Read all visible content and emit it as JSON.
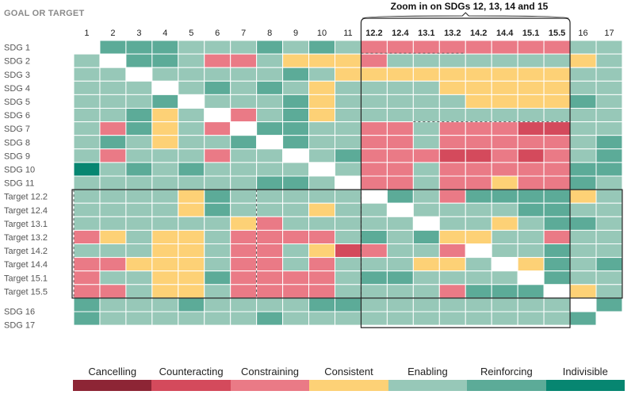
{
  "chart_data": {
    "type": "heatmap",
    "header_label": "GOAL OR TARGET",
    "zoom_title": "Zoom in on SDGs 12, 13, 14 and 15",
    "columns": [
      "1",
      "2",
      "3",
      "4",
      "5",
      "6",
      "7",
      "8",
      "9",
      "10",
      "11",
      "12.2",
      "12.4",
      "13.1",
      "13.2",
      "14.2",
      "14.4",
      "15.1",
      "15.5",
      "16",
      "17"
    ],
    "rows": [
      "SDG 1",
      "SDG 2",
      "SDG 3",
      "SDG 4",
      "SDG 5",
      "SDG 6",
      "SDG 7",
      "SDG 8",
      "SDG 9",
      "SDG 10",
      "SDG 11",
      "Target 12.2",
      "Target 12.4",
      "Target 13.1",
      "Target 13.2",
      "Target 14.2",
      "Target 14.4",
      "Target 15.1",
      "Target 15.5",
      "SDG 16",
      "SDG 17"
    ],
    "scale": [
      {
        "key": "X",
        "label": "Cancelling",
        "color": "#8d2535"
      },
      {
        "key": "A",
        "label": "Counteracting",
        "color": "#d44a5c"
      },
      {
        "key": "C",
        "label": "Constraining",
        "color": "#ea7a86"
      },
      {
        "key": "N",
        "label": "Consistent",
        "color": "#fdd176"
      },
      {
        "key": "E",
        "label": "Enabling",
        "color": "#97c8b8"
      },
      {
        "key": "R",
        "label": "Reinforcing",
        "color": "#5cab98"
      },
      {
        "key": "I",
        "label": "Indivisible",
        "color": "#078671"
      }
    ],
    "diagonal_color": "#ffffff",
    "matrix": [
      "-RRREEERERECCCCCCCCEE",
      "E-RRECCENNNCEEEEEEENE",
      "EE-EEEEERENNNNNNNNNEE",
      "EEE-ERERENEEEENNNNNEE",
      "EEER-EEERNEEEEENNNNRE",
      "EERNE-CERNEEEEEEEEEEE",
      "ECRNEC-RREECCECCCAAEE",
      "ERENEER-REECCECCCCCER",
      "ECEEECEE-ERCCCAACACER",
      "IEREREEEE-ECCECCCCCRR",
      "EEEEEEERRE-CCECCNCCRE",
      "EEEENREEEEE-RECRRRRNE",
      "EEEENREEENEE-EEEERREE",
      "EEEEEENCEEEEE-EENERRE",
      "CNENNECCCCERERNNEECEE",
      "EEENNECCENACEEC-EEREE",
      "CCNNNECCECEEENNE-NRER",
      "CEENNRCCCCERREEEE-REE",
      "CCENNECCCCEEEECRRR-NE",
      "REEEREEEERREEEEEEEE-R",
      "REEEEEEREEEEEEEEEEER-"
    ]
  }
}
